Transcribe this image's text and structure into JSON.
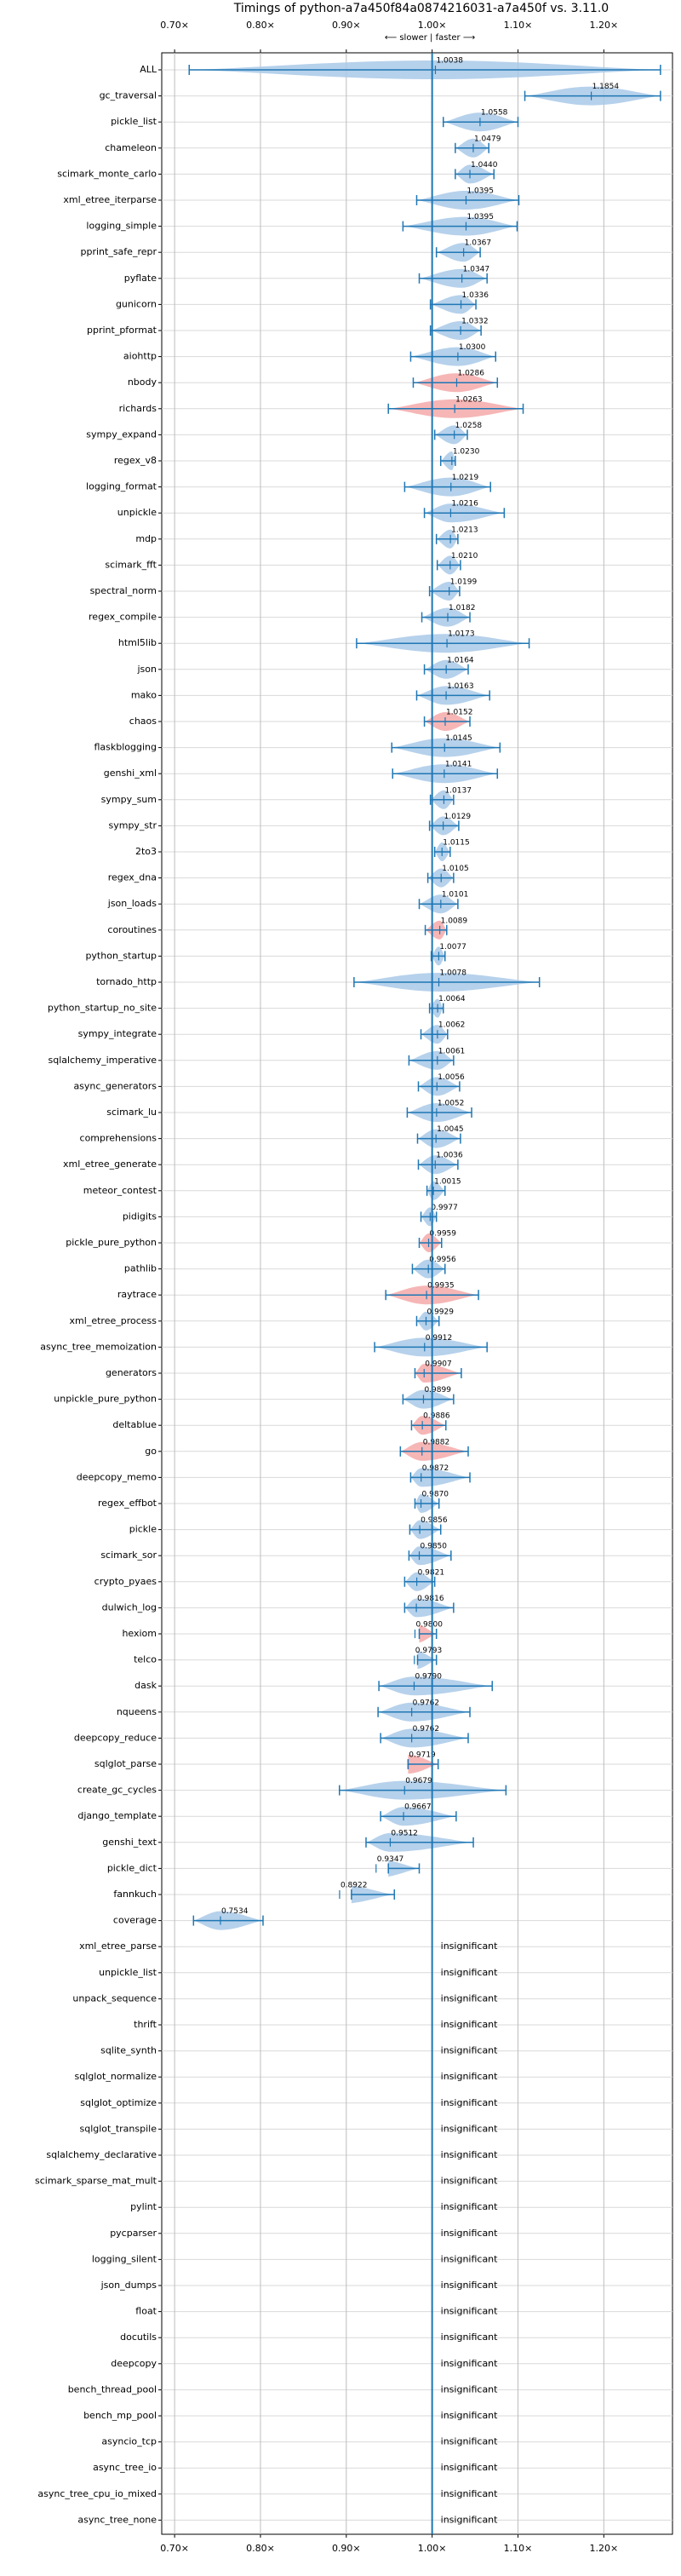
{
  "chart_data": {
    "type": "violin",
    "title": "Timings of python-a7a450f84a0874216031-a7a450f vs. 3.11.0",
    "subtitle": "⟵ slower | faster ⟶",
    "xlim": [
      0.685,
      1.28
    ],
    "xticks": [
      {
        "value": 0.7,
        "label": "0.70×"
      },
      {
        "value": 0.8,
        "label": "0.80×"
      },
      {
        "value": 0.9,
        "label": "0.90×"
      },
      {
        "value": 1.0,
        "label": "1.00×"
      },
      {
        "value": 1.1,
        "label": "1.10×"
      },
      {
        "value": 1.2,
        "label": "1.20×"
      }
    ],
    "grid": true,
    "reference": 1,
    "line_color": "#1f77b4",
    "note": "insignificant",
    "categories": [
      "ALL",
      "gc_traversal",
      "pickle_list",
      "chameleon",
      "scimark_monte_carlo",
      "xml_etree_iterparse",
      "logging_simple",
      "pprint_safe_repr",
      "pyflate",
      "gunicorn",
      "pprint_pformat",
      "aiohttp",
      "nbody",
      "richards",
      "sympy_expand",
      "regex_v8",
      "logging_format",
      "unpickle",
      "mdp",
      "scimark_fft",
      "spectral_norm",
      "regex_compile",
      "html5lib",
      "json",
      "mako",
      "chaos",
      "flaskblogging",
      "genshi_xml",
      "sympy_sum",
      "sympy_str",
      "2to3",
      "regex_dna",
      "json_loads",
      "coroutines",
      "python_startup",
      "tornado_http",
      "python_startup_no_site",
      "sympy_integrate",
      "sqlalchemy_imperative",
      "async_generators",
      "scimark_lu",
      "comprehensions",
      "xml_etree_generate",
      "meteor_contest",
      "pidigits",
      "pickle_pure_python",
      "pathlib",
      "raytrace",
      "xml_etree_process",
      "async_tree_memoization",
      "generators",
      "unpickle_pure_python",
      "deltablue",
      "go",
      "deepcopy_memo",
      "regex_effbot",
      "pickle",
      "scimark_sor",
      "crypto_pyaes",
      "dulwich_log",
      "hexiom",
      "telco",
      "dask",
      "nqueens",
      "deepcopy_reduce",
      "sqlglot_parse",
      "create_gc_cycles",
      "django_template",
      "genshi_text",
      "pickle_dict",
      "fannkuch",
      "coverage",
      "xml_etree_parse",
      "unpickle_list",
      "unpack_sequence",
      "thrift",
      "sqlite_synth",
      "sqlglot_normalize",
      "sqlglot_optimize",
      "sqlglot_transpile",
      "sqlalchemy_declarative",
      "scimark_sparse_mat_mult",
      "pylint",
      "pycparser",
      "logging_silent",
      "json_dumps",
      "float",
      "docutils",
      "deepcopy",
      "bench_thread_pool",
      "bench_mp_pool",
      "asyncio_tcp",
      "async_tree_io",
      "async_tree_cpu_io_mixed",
      "async_tree_none"
    ],
    "values": [
      1.0038,
      1.1854,
      1.0558,
      1.0479,
      1.044,
      1.0395,
      1.0395,
      1.0367,
      1.0347,
      1.0336,
      1.0332,
      1.03,
      1.0286,
      1.0263,
      1.0258,
      1.023,
      1.0219,
      1.0216,
      1.0213,
      1.021,
      1.0199,
      1.0182,
      1.0173,
      1.0164,
      1.0163,
      1.0152,
      1.0145,
      1.0141,
      1.0137,
      1.0129,
      1.0115,
      1.0105,
      1.0101,
      1.0089,
      1.0077,
      1.0078,
      1.0064,
      1.0062,
      1.0061,
      1.0056,
      1.0052,
      1.0045,
      1.0036,
      1.0015,
      0.9977,
      0.9959,
      0.9956,
      0.9935,
      0.9929,
      0.9912,
      0.9907,
      0.9899,
      0.9886,
      0.9882,
      0.9872,
      0.987,
      0.9856,
      0.985,
      0.9821,
      0.9816,
      0.98,
      0.9793,
      0.979,
      0.9762,
      0.9762,
      0.9719,
      0.9679,
      0.9667,
      0.9512,
      0.9347,
      0.8922,
      0.7534,
      null,
      null,
      null,
      null,
      null,
      null,
      null,
      null,
      null,
      null,
      null,
      null,
      null,
      null,
      null,
      null,
      null,
      null,
      null,
      null,
      null,
      null,
      null
    ],
    "value_labels": [
      "1.0038",
      "1.1854",
      "1.0558",
      "1.0479",
      "1.0440",
      "1.0395",
      "1.0395",
      "1.0367",
      "1.0347",
      "1.0336",
      "1.0332",
      "1.0300",
      "1.0286",
      "1.0263",
      "1.0258",
      "1.0230",
      "1.0219",
      "1.0216",
      "1.0213",
      "1.0210",
      "1.0199",
      "1.0182",
      "1.0173",
      "1.0164",
      "1.0163",
      "1.0152",
      "1.0145",
      "1.0141",
      "1.0137",
      "1.0129",
      "1.0115",
      "1.0105",
      "1.0101",
      "1.0089",
      "1.0077",
      "1.0078",
      "1.0064",
      "1.0062",
      "1.0061",
      "1.0056",
      "1.0052",
      "1.0045",
      "1.0036",
      "1.0015",
      "0.9977",
      "0.9959",
      "0.9956",
      "0.9935",
      "0.9929",
      "0.9912",
      "0.9907",
      "0.9899",
      "0.9886",
      "0.9882",
      "0.9872",
      "0.9870",
      "0.9856",
      "0.9850",
      "0.9821",
      "0.9816",
      "0.9800",
      "0.9793",
      "0.9790",
      "0.9762",
      "0.9762",
      "0.9719",
      "0.9679",
      "0.9667",
      "0.9512",
      "0.9347",
      "0.8922",
      "0.7534",
      null,
      null,
      null,
      null,
      null,
      null,
      null,
      null,
      null,
      null,
      null,
      null,
      null,
      null,
      null,
      null,
      null,
      null,
      null,
      null,
      null,
      null,
      null
    ],
    "whisker_low": [
      0.717,
      1.108,
      1.013,
      1.027,
      1.027,
      0.982,
      0.966,
      1.005,
      0.985,
      0.998,
      0.998,
      0.975,
      0.978,
      0.949,
      1.003,
      1.01,
      0.968,
      0.991,
      1.005,
      1.006,
      0.997,
      0.988,
      0.912,
      0.991,
      0.982,
      0.991,
      0.953,
      0.954,
      0.998,
      0.997,
      1.003,
      0.995,
      0.985,
      0.992,
      0.999,
      0.909,
      0.997,
      0.987,
      0.973,
      0.984,
      0.971,
      0.983,
      0.984,
      0.994,
      0.987,
      0.985,
      0.977,
      0.946,
      0.982,
      0.933,
      0.98,
      0.966,
      0.976,
      0.963,
      0.975,
      0.98,
      0.974,
      0.973,
      0.968,
      0.968,
      0.985,
      0.983,
      0.938,
      0.937,
      0.94,
      0.972,
      0.892,
      0.94,
      0.923,
      0.949,
      0.906,
      0.722,
      null,
      null,
      null,
      null,
      null,
      null,
      null,
      null,
      null,
      null,
      null,
      null,
      null,
      null,
      null,
      null,
      null,
      null,
      null,
      null,
      null,
      null,
      null
    ],
    "whisker_high": [
      1.266,
      1.266,
      1.1,
      1.066,
      1.072,
      1.101,
      1.099,
      1.056,
      1.064,
      1.051,
      1.057,
      1.074,
      1.076,
      1.106,
      1.041,
      1.027,
      1.068,
      1.084,
      1.03,
      1.033,
      1.032,
      1.044,
      1.113,
      1.042,
      1.067,
      1.044,
      1.079,
      1.076,
      1.025,
      1.031,
      1.021,
      1.025,
      1.03,
      1.017,
      1.015,
      1.125,
      1.013,
      1.018,
      1.025,
      1.032,
      1.046,
      1.033,
      1.03,
      1.015,
      1.005,
      1.011,
      1.015,
      1.054,
      1.008,
      1.064,
      1.034,
      1.025,
      1.016,
      1.042,
      1.044,
      1.008,
      1.01,
      1.022,
      1.003,
      1.025,
      1.005,
      1.005,
      1.07,
      1.044,
      1.042,
      1.007,
      1.086,
      1.028,
      1.048,
      0.985,
      0.956,
      0.803,
      null,
      null,
      null,
      null,
      null,
      null,
      null,
      null,
      null,
      null,
      null,
      null,
      null,
      null,
      null,
      null,
      null,
      null,
      null,
      null,
      null,
      null,
      null
    ],
    "colors": [
      "#a9c9e8",
      "#a9c9e8",
      "#a9c9e8",
      "#a9c9e8",
      "#a9c9e8",
      "#a9c9e8",
      "#a9c9e8",
      "#a9c9e8",
      "#a9c9e8",
      "#a9c9e8",
      "#a9c9e8",
      "#a9c9e8",
      "#f5a9a9",
      "#f5a9a9",
      "#a9c9e8",
      "#a9c9e8",
      "#a9c9e8",
      "#a9c9e8",
      "#a9c9e8",
      "#a9c9e8",
      "#a9c9e8",
      "#a9c9e8",
      "#a9c9e8",
      "#a9c9e8",
      "#a9c9e8",
      "#f5a9a9",
      "#a9c9e8",
      "#a9c9e8",
      "#a9c9e8",
      "#a9c9e8",
      "#a9c9e8",
      "#a9c9e8",
      "#a9c9e8",
      "#f5a9a9",
      "#a9c9e8",
      "#a9c9e8",
      "#a9c9e8",
      "#a9c9e8",
      "#a9c9e8",
      "#a9c9e8",
      "#a9c9e8",
      "#a9c9e8",
      "#a9c9e8",
      "#a9c9e8",
      "#a9c9e8",
      "#f5a9a9",
      "#a9c9e8",
      "#f5a9a9",
      "#a9c9e8",
      "#a9c9e8",
      "#f5a9a9",
      "#a9c9e8",
      "#f5a9a9",
      "#f5a9a9",
      "#a9c9e8",
      "#a9c9e8",
      "#a9c9e8",
      "#a9c9e8",
      "#a9c9e8",
      "#a9c9e8",
      "#f5a9a9",
      "#a9c9e8",
      "#a9c9e8",
      "#a9c9e8",
      "#a9c9e8",
      "#f5a9a9",
      "#a9c9e8",
      "#a9c9e8",
      "#a9c9e8",
      "#a9c9e8",
      "#a9c9e8",
      "#a9c9e8",
      null,
      null,
      null,
      null,
      null,
      null,
      null,
      null,
      null,
      null,
      null,
      null,
      null,
      null,
      null,
      null,
      null,
      null,
      null,
      null,
      null,
      null,
      null
    ]
  }
}
